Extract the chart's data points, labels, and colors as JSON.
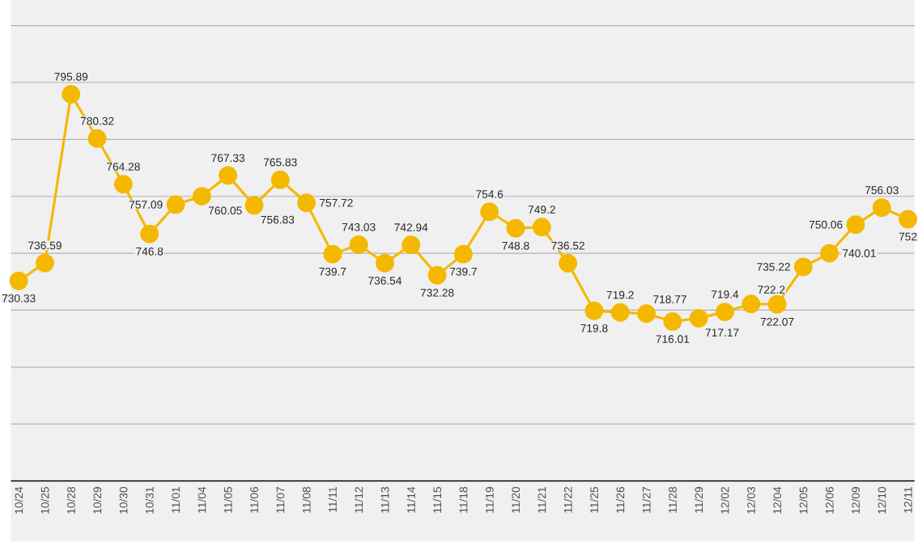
{
  "chart_data": {
    "type": "line",
    "categories": [
      "10/24",
      "10/25",
      "10/28",
      "10/29",
      "10/30",
      "10/31",
      "11/01",
      "11/04",
      "11/05",
      "11/06",
      "11/07",
      "11/08",
      "11/11",
      "11/12",
      "11/13",
      "11/14",
      "11/15",
      "11/18",
      "11/19",
      "11/20",
      "11/21",
      "11/22",
      "11/25",
      "11/26",
      "11/27",
      "11/28",
      "11/29",
      "12/02",
      "12/03",
      "12/04",
      "12/05",
      "12/06",
      "12/09",
      "12/10",
      "12/11"
    ],
    "values": [
      730.33,
      736.59,
      795.89,
      780.32,
      764.28,
      746.8,
      757.09,
      760.05,
      767.33,
      756.83,
      765.83,
      757.72,
      739.7,
      743.03,
      736.54,
      742.94,
      732.28,
      739.7,
      754.6,
      748.8,
      749.2,
      736.52,
      719.8,
      719.2,
      718.77,
      716.01,
      717.17,
      719.4,
      722.2,
      722.07,
      735.22,
      740.01,
      750.06,
      756.03,
      752
    ],
    "color": "#f5b800",
    "ylim": [
      660,
      829
    ],
    "grid": "y",
    "tick_labels": "x",
    "marker": "circle",
    "line_style": "solid",
    "data_labels": true
  }
}
